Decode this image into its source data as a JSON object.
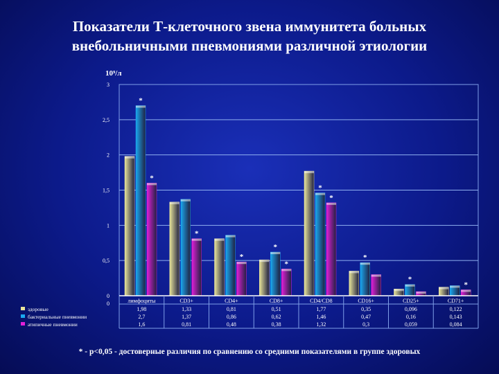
{
  "title_line1": "Показатели Т-клеточного звена иммунитета больных",
  "title_line2": "внебольничными пневмониями различной этиологии",
  "footnote": "* - p<0,05 - достоверные различия по сравнению со средними показателями в группе здоровых",
  "chart_data": {
    "type": "bar",
    "ylabel": "10⁹/л",
    "ylim": [
      0,
      3
    ],
    "yticks": [
      "0",
      "0,5",
      "1",
      "1,5",
      "2",
      "2,5",
      "3"
    ],
    "grid": true,
    "categories": [
      "лимфоциты",
      "CD3+",
      "CD4+",
      "CD8+",
      "CD4/CD8",
      "CD16+",
      "CD25+",
      "CD71+"
    ],
    "series": [
      {
        "name": "здоровые",
        "color": "#e8e49a",
        "values": [
          1.98,
          1.33,
          0.81,
          0.51,
          1.77,
          0.35,
          0.096,
          0.122
        ],
        "labels": [
          "1,98",
          "1,33",
          "0,81",
          "0,51",
          "1,77",
          "0,35",
          "0,096",
          "0,122"
        ],
        "significant": [
          false,
          false,
          false,
          false,
          false,
          false,
          false,
          false
        ]
      },
      {
        "name": "бактериальные пневмонии",
        "color": "#1aa8f0",
        "values": [
          2.7,
          1.37,
          0.86,
          0.62,
          1.46,
          0.47,
          0.16,
          0.143
        ],
        "labels": [
          "2,7",
          "1,37",
          "0,86",
          "0,62",
          "1,46",
          "0,47",
          "0,16",
          "0,143"
        ],
        "significant": [
          true,
          false,
          false,
          true,
          true,
          true,
          true,
          false
        ]
      },
      {
        "name": "атипичные пневмонии",
        "color": "#e020d8",
        "values": [
          1.6,
          0.81,
          0.48,
          0.38,
          1.32,
          0.3,
          0.059,
          0.084
        ],
        "labels": [
          "1,6",
          "0,81",
          "0,48",
          "0,38",
          "1,32",
          "0,3",
          "0,059",
          "0,084"
        ],
        "significant": [
          true,
          true,
          true,
          true,
          true,
          false,
          false,
          true
        ]
      }
    ],
    "marker": "*",
    "table_zero_label": "0"
  }
}
